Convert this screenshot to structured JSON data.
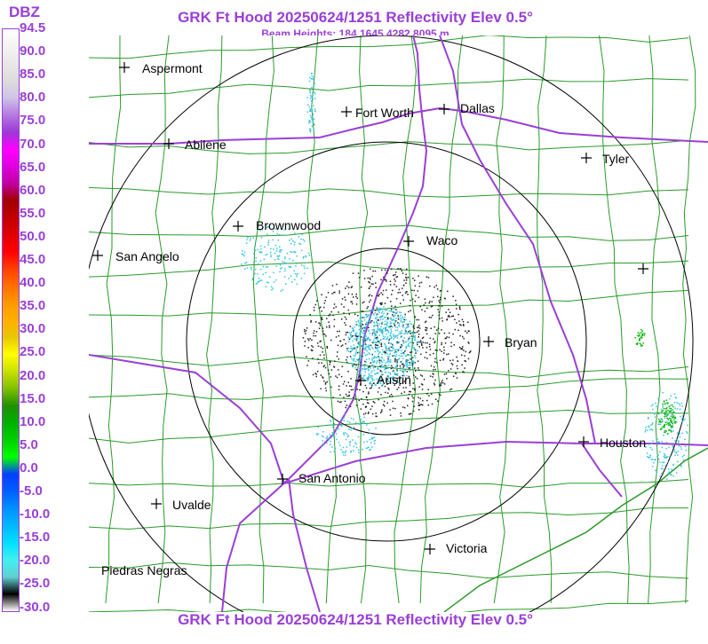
{
  "header": {
    "title": "GRK Ft Hood 20250624/1251 Reflectivity Elev 0.5°",
    "subtitle": "Beam Heights: 184 1645 4282 8095 m",
    "footer": "GRK Ft Hood 20250624/1251 Reflectivity Elev 0.5°"
  },
  "legend": {
    "unit": "DBZ",
    "labels": [
      "94.5",
      "90.0",
      "85.0",
      "80.0",
      "75.0",
      "70.0",
      "65.0",
      "60.0",
      "55.0",
      "50.0",
      "45.0",
      "40.0",
      "35.0",
      "30.0",
      "25.0",
      "20.0",
      "15.0",
      "10.0",
      "5.0",
      "0.0",
      "-5.0",
      "-10.0",
      "-15.0",
      "-20.0",
      "-25.0",
      "-30.0"
    ],
    "colors": [
      "#ffffff",
      "#f4f4f4",
      "#e8e8e8",
      "#dcdcdc",
      "#cfc4e8",
      "#b57ae0",
      "#9b3ad6",
      "#ff00ff",
      "#e000e0",
      "#c000a0",
      "#a00000",
      "#c00000",
      "#e00000",
      "#ff0000",
      "#ff4000",
      "#ff7000",
      "#ff9800",
      "#ffb000",
      "#e8c800",
      "#ffff00",
      "#c8e000",
      "#80c000",
      "#209000",
      "#00b000",
      "#00d000",
      "#00ff00",
      "#0040ff",
      "#0060ff",
      "#0090ff",
      "#00b8ff",
      "#00e0ff",
      "#40f0f0",
      "#60d0d0",
      "#000000",
      "#ffffff"
    ]
  },
  "map": {
    "cities": [
      {
        "name": "Aspermont"
      },
      {
        "name": "Abilene"
      },
      {
        "name": "Fort Worth"
      },
      {
        "name": "Dallas"
      },
      {
        "name": "Tyler"
      },
      {
        "name": "Brownwood"
      },
      {
        "name": "Waco"
      },
      {
        "name": "San Angelo"
      },
      {
        "name": "Bryan"
      },
      {
        "name": "Austin"
      },
      {
        "name": "Houston"
      },
      {
        "name": "San Antonio"
      },
      {
        "name": "Uvalde"
      },
      {
        "name": "Victoria"
      },
      {
        "name": "Piedras Negras"
      },
      {
        "name": ""
      }
    ],
    "colors": {
      "county_lines": "#2a9a2a",
      "highways": "#9a3fd6",
      "range_rings": "#000000",
      "echo_main": "#33c4e0",
      "echo_strong": "#00b000"
    }
  }
}
